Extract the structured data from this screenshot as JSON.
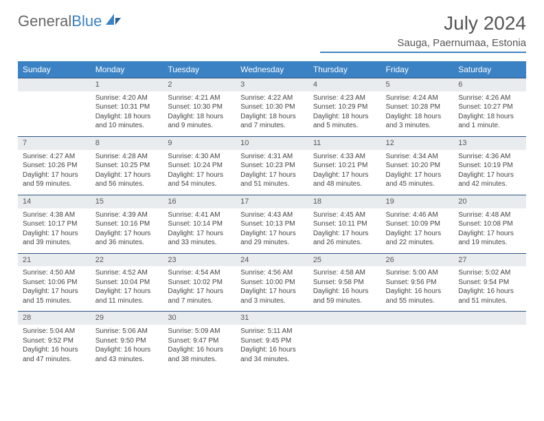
{
  "logo": {
    "part1": "General",
    "part2": "Blue"
  },
  "title": "July 2024",
  "location": "Sauga, Paernumaa, Estonia",
  "weekdays": [
    "Sunday",
    "Monday",
    "Tuesday",
    "Wednesday",
    "Thursday",
    "Friday",
    "Saturday"
  ],
  "colors": {
    "accent": "#3b82c4",
    "header_bg": "#3b82c4",
    "daynum_bg": "#e9ecef"
  },
  "weeks": [
    {
      "nums": [
        "",
        "1",
        "2",
        "3",
        "4",
        "5",
        "6"
      ],
      "cells": [
        [],
        [
          "Sunrise: 4:20 AM",
          "Sunset: 10:31 PM",
          "Daylight: 18 hours",
          "and 10 minutes."
        ],
        [
          "Sunrise: 4:21 AM",
          "Sunset: 10:30 PM",
          "Daylight: 18 hours",
          "and 9 minutes."
        ],
        [
          "Sunrise: 4:22 AM",
          "Sunset: 10:30 PM",
          "Daylight: 18 hours",
          "and 7 minutes."
        ],
        [
          "Sunrise: 4:23 AM",
          "Sunset: 10:29 PM",
          "Daylight: 18 hours",
          "and 5 minutes."
        ],
        [
          "Sunrise: 4:24 AM",
          "Sunset: 10:28 PM",
          "Daylight: 18 hours",
          "and 3 minutes."
        ],
        [
          "Sunrise: 4:26 AM",
          "Sunset: 10:27 PM",
          "Daylight: 18 hours",
          "and 1 minute."
        ]
      ]
    },
    {
      "nums": [
        "7",
        "8",
        "9",
        "10",
        "11",
        "12",
        "13"
      ],
      "cells": [
        [
          "Sunrise: 4:27 AM",
          "Sunset: 10:26 PM",
          "Daylight: 17 hours",
          "and 59 minutes."
        ],
        [
          "Sunrise: 4:28 AM",
          "Sunset: 10:25 PM",
          "Daylight: 17 hours",
          "and 56 minutes."
        ],
        [
          "Sunrise: 4:30 AM",
          "Sunset: 10:24 PM",
          "Daylight: 17 hours",
          "and 54 minutes."
        ],
        [
          "Sunrise: 4:31 AM",
          "Sunset: 10:23 PM",
          "Daylight: 17 hours",
          "and 51 minutes."
        ],
        [
          "Sunrise: 4:33 AM",
          "Sunset: 10:21 PM",
          "Daylight: 17 hours",
          "and 48 minutes."
        ],
        [
          "Sunrise: 4:34 AM",
          "Sunset: 10:20 PM",
          "Daylight: 17 hours",
          "and 45 minutes."
        ],
        [
          "Sunrise: 4:36 AM",
          "Sunset: 10:19 PM",
          "Daylight: 17 hours",
          "and 42 minutes."
        ]
      ]
    },
    {
      "nums": [
        "14",
        "15",
        "16",
        "17",
        "18",
        "19",
        "20"
      ],
      "cells": [
        [
          "Sunrise: 4:38 AM",
          "Sunset: 10:17 PM",
          "Daylight: 17 hours",
          "and 39 minutes."
        ],
        [
          "Sunrise: 4:39 AM",
          "Sunset: 10:16 PM",
          "Daylight: 17 hours",
          "and 36 minutes."
        ],
        [
          "Sunrise: 4:41 AM",
          "Sunset: 10:14 PM",
          "Daylight: 17 hours",
          "and 33 minutes."
        ],
        [
          "Sunrise: 4:43 AM",
          "Sunset: 10:13 PM",
          "Daylight: 17 hours",
          "and 29 minutes."
        ],
        [
          "Sunrise: 4:45 AM",
          "Sunset: 10:11 PM",
          "Daylight: 17 hours",
          "and 26 minutes."
        ],
        [
          "Sunrise: 4:46 AM",
          "Sunset: 10:09 PM",
          "Daylight: 17 hours",
          "and 22 minutes."
        ],
        [
          "Sunrise: 4:48 AM",
          "Sunset: 10:08 PM",
          "Daylight: 17 hours",
          "and 19 minutes."
        ]
      ]
    },
    {
      "nums": [
        "21",
        "22",
        "23",
        "24",
        "25",
        "26",
        "27"
      ],
      "cells": [
        [
          "Sunrise: 4:50 AM",
          "Sunset: 10:06 PM",
          "Daylight: 17 hours",
          "and 15 minutes."
        ],
        [
          "Sunrise: 4:52 AM",
          "Sunset: 10:04 PM",
          "Daylight: 17 hours",
          "and 11 minutes."
        ],
        [
          "Sunrise: 4:54 AM",
          "Sunset: 10:02 PM",
          "Daylight: 17 hours",
          "and 7 minutes."
        ],
        [
          "Sunrise: 4:56 AM",
          "Sunset: 10:00 PM",
          "Daylight: 17 hours",
          "and 3 minutes."
        ],
        [
          "Sunrise: 4:58 AM",
          "Sunset: 9:58 PM",
          "Daylight: 16 hours",
          "and 59 minutes."
        ],
        [
          "Sunrise: 5:00 AM",
          "Sunset: 9:56 PM",
          "Daylight: 16 hours",
          "and 55 minutes."
        ],
        [
          "Sunrise: 5:02 AM",
          "Sunset: 9:54 PM",
          "Daylight: 16 hours",
          "and 51 minutes."
        ]
      ]
    },
    {
      "nums": [
        "28",
        "29",
        "30",
        "31",
        "",
        "",
        ""
      ],
      "cells": [
        [
          "Sunrise: 5:04 AM",
          "Sunset: 9:52 PM",
          "Daylight: 16 hours",
          "and 47 minutes."
        ],
        [
          "Sunrise: 5:06 AM",
          "Sunset: 9:50 PM",
          "Daylight: 16 hours",
          "and 43 minutes."
        ],
        [
          "Sunrise: 5:09 AM",
          "Sunset: 9:47 PM",
          "Daylight: 16 hours",
          "and 38 minutes."
        ],
        [
          "Sunrise: 5:11 AM",
          "Sunset: 9:45 PM",
          "Daylight: 16 hours",
          "and 34 minutes."
        ],
        [],
        [],
        []
      ]
    }
  ]
}
